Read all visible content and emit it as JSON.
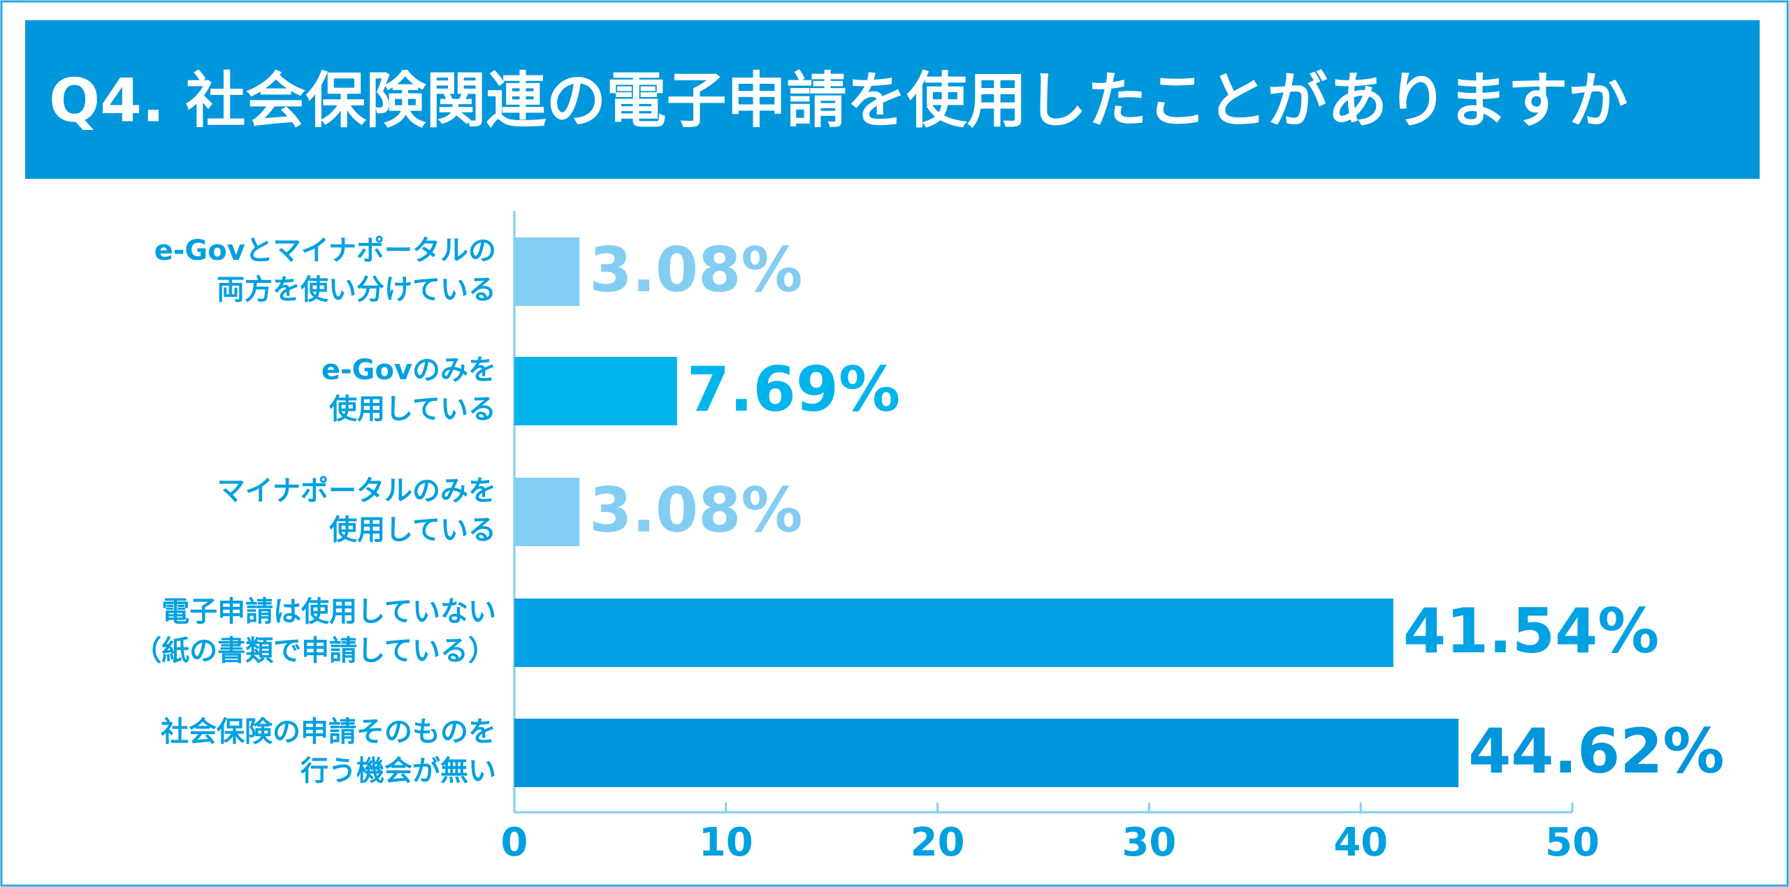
{
  "chart_data": {
    "type": "hbar",
    "title": "Q4. 社会保険関連の電子申請を使用したことがありますか",
    "categories": [
      [
        "e-Govとマイナポータルの",
        "両方を使い分けている"
      ],
      [
        "e-Govのみを",
        "使用している"
      ],
      [
        "マイナポータルのみを",
        "使用している"
      ],
      [
        "電子申請は使用していない",
        "（紙の書類で申請している）"
      ],
      [
        "社会保険の申請そのものを",
        "行う機会が無い"
      ]
    ],
    "values": [
      3.08,
      7.69,
      3.08,
      41.54,
      44.62
    ],
    "value_labels": [
      "3.08%",
      "7.69%",
      "3.08%",
      "41.54%",
      "44.62%"
    ],
    "colors": [
      "#84cdf2",
      "#00b5ec",
      "#84cdf2",
      "#00a2e3",
      "#0096dc"
    ],
    "xlim": [
      0,
      50
    ],
    "xticks": [
      0,
      10,
      20,
      30,
      40,
      50
    ]
  }
}
